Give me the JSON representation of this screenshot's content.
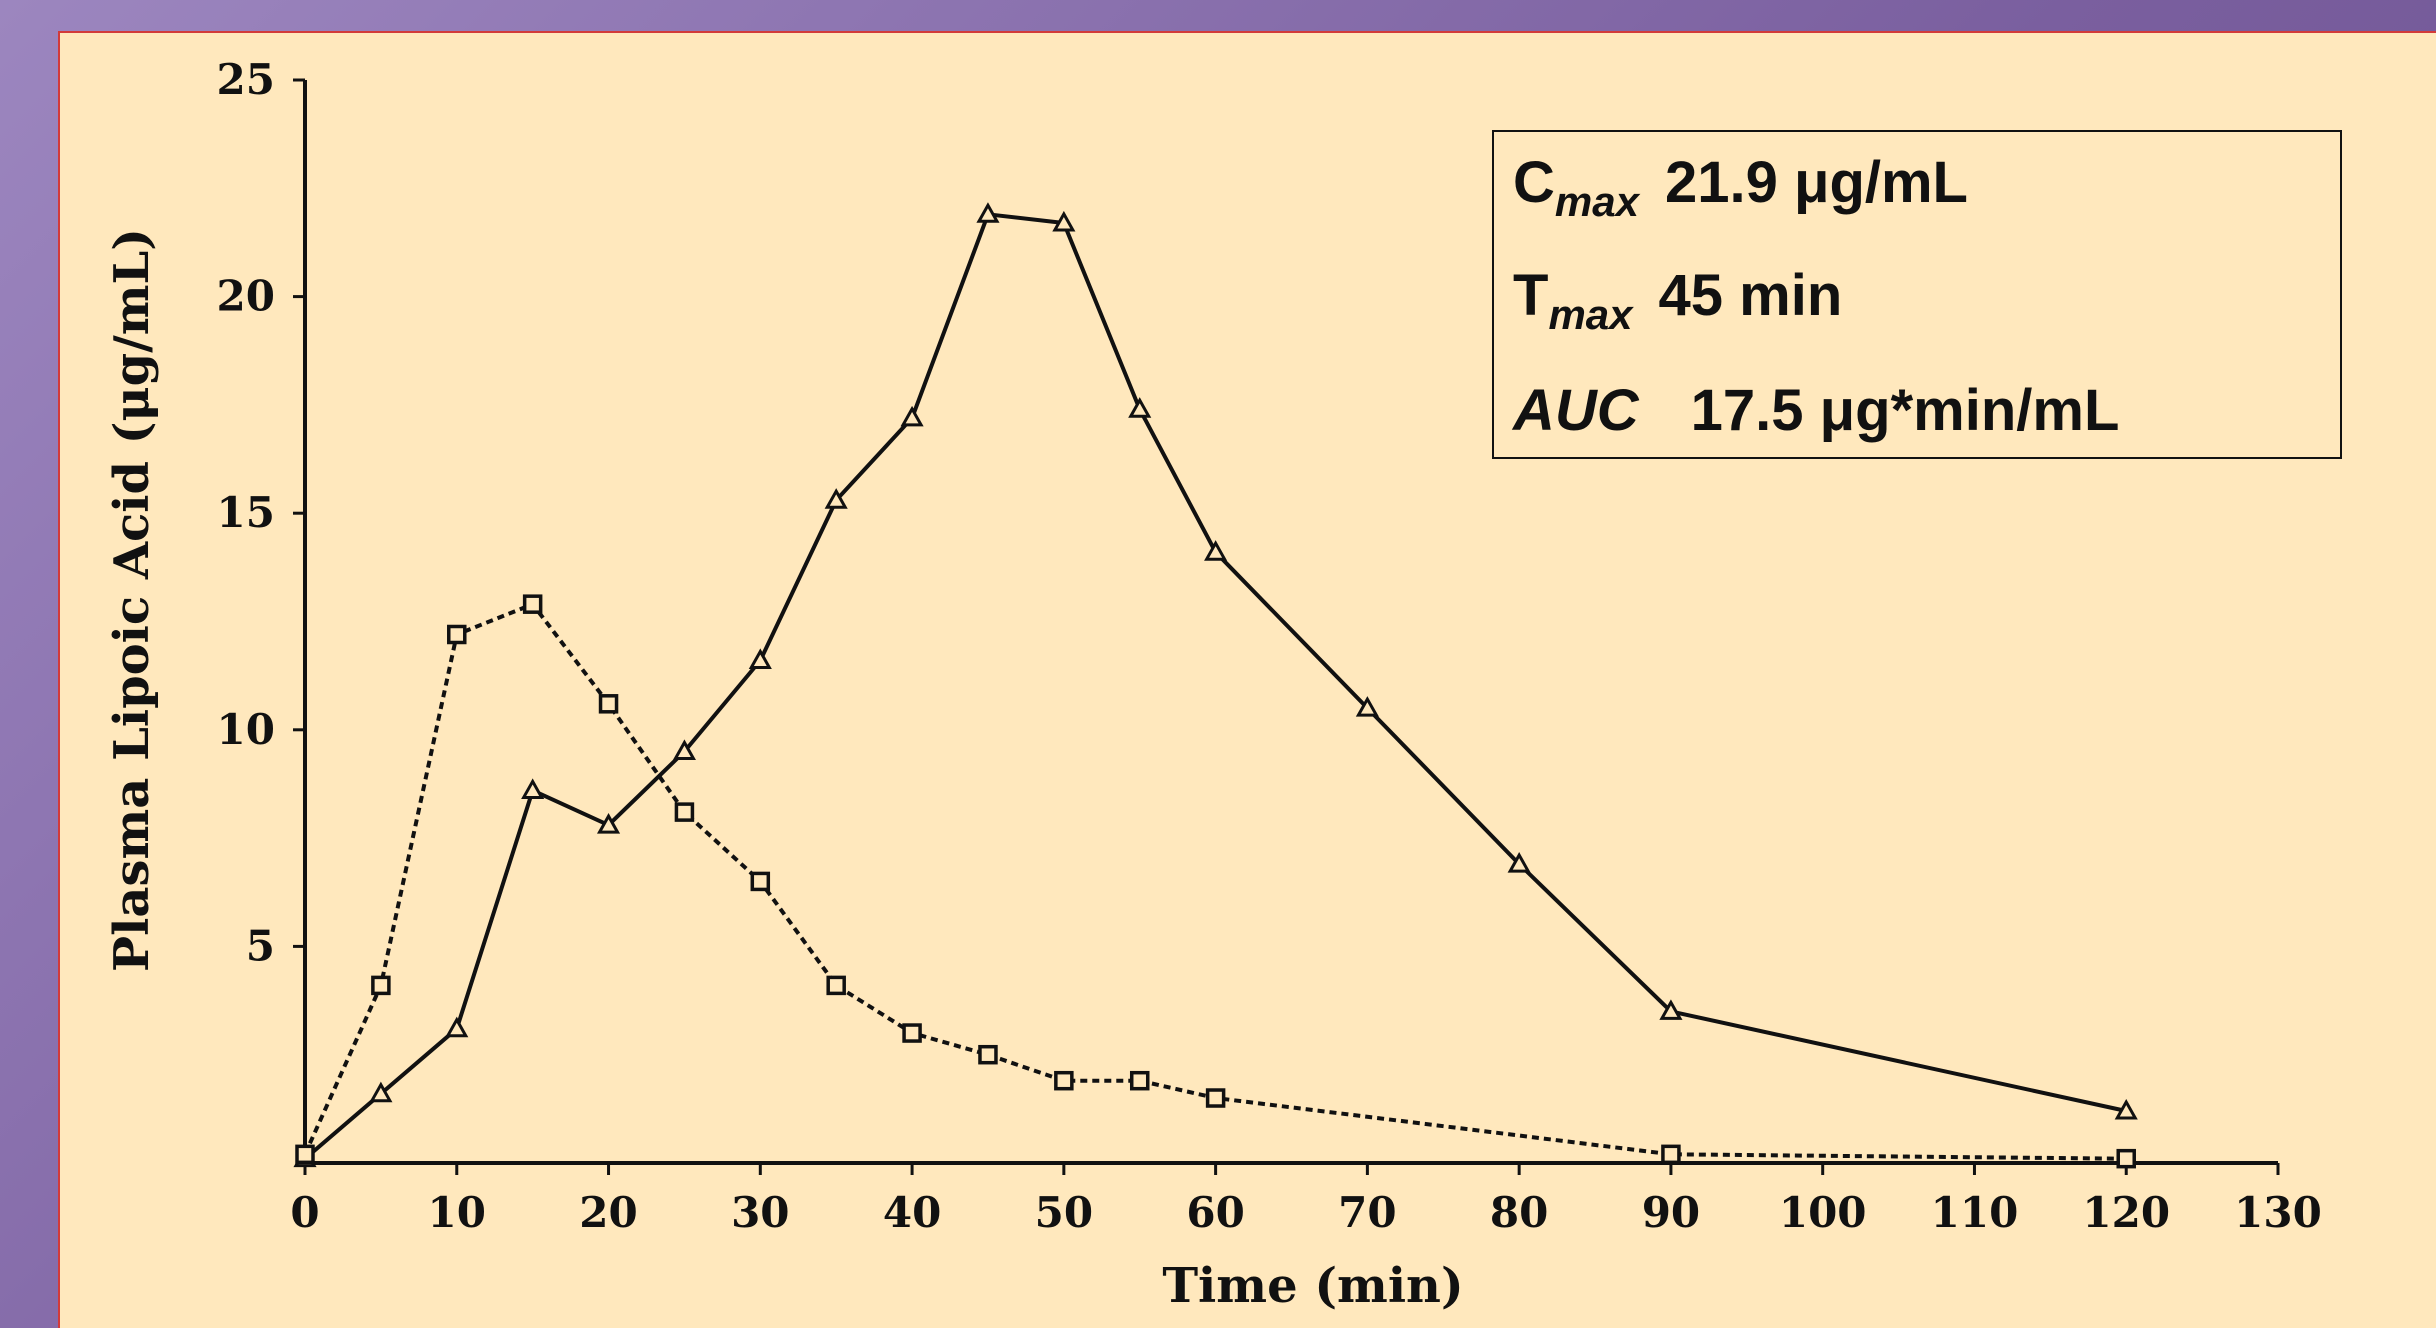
{
  "chart_data": {
    "type": "line",
    "title": "",
    "xlabel": "Time (min)",
    "ylabel": "Plasma Lipoic Acid (μg/mL)",
    "xlim": [
      0,
      130
    ],
    "ylim": [
      0,
      25
    ],
    "x_ticks": [
      0,
      10,
      20,
      30,
      40,
      50,
      60,
      70,
      80,
      90,
      100,
      110,
      120,
      130
    ],
    "y_ticks": [
      5,
      10,
      15,
      20,
      25
    ],
    "grid": false,
    "series": [
      {
        "marker": "triangle",
        "line_style": "solid",
        "x": [
          0,
          5,
          10,
          15,
          20,
          25,
          30,
          35,
          40,
          45,
          50,
          55,
          60,
          70,
          80,
          90,
          120
        ],
        "y": [
          0.1,
          1.6,
          3.1,
          8.6,
          7.8,
          9.5,
          11.6,
          15.3,
          17.2,
          21.9,
          21.7,
          17.4,
          14.1,
          10.5,
          6.9,
          3.5,
          1.2
        ]
      },
      {
        "marker": "square",
        "line_style": "dotted",
        "x": [
          0,
          5,
          10,
          15,
          20,
          25,
          30,
          35,
          40,
          45,
          50,
          55,
          60,
          90,
          120
        ],
        "y": [
          0.2,
          4.1,
          12.2,
          12.9,
          10.6,
          8.1,
          6.5,
          4.1,
          3.0,
          2.5,
          1.9,
          1.9,
          1.5,
          0.2,
          0.1
        ]
      }
    ],
    "stats_box": {
      "cmax_symbol": "C",
      "cmax_sub": "max",
      "cmax_value": "21.9 μg/mL",
      "tmax_symbol": "T",
      "tmax_sub": "max",
      "tmax_value": "45 min",
      "auc_label": "AUC",
      "auc_value": "17.5 μg*min/mL"
    }
  }
}
